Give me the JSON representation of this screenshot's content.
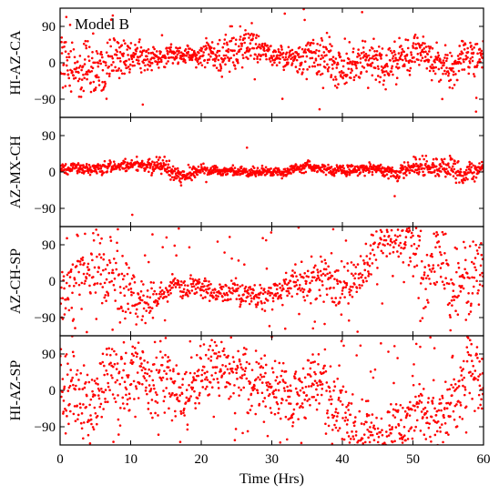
{
  "chart_data": {
    "type": "scatter",
    "title": "",
    "annotation": "Model B",
    "xlabel": "Time (Hrs)",
    "xlim": [
      0,
      60
    ],
    "x_ticks": [
      0,
      10,
      20,
      30,
      40,
      50,
      60
    ],
    "ylim": [
      -135,
      135
    ],
    "y_ticks": [
      -90,
      0,
      90
    ],
    "y_tick_labels": [
      "−90",
      "0",
      "90"
    ],
    "grid": false,
    "marker_color": "#ff0000",
    "series": [
      {
        "name": "HI-AZ-CA",
        "points_per_hour": 20,
        "baseline": [
          [
            0,
            -5
          ],
          [
            3,
            -15
          ],
          [
            6,
            0
          ],
          [
            10,
            10
          ],
          [
            14,
            10
          ],
          [
            20,
            20
          ],
          [
            25,
            25
          ],
          [
            27,
            40
          ],
          [
            30,
            20
          ],
          [
            33,
            10
          ],
          [
            36,
            20
          ],
          [
            40,
            -5
          ],
          [
            44,
            5
          ],
          [
            48,
            10
          ],
          [
            52,
            15
          ],
          [
            55,
            -20
          ],
          [
            58,
            20
          ],
          [
            60,
            25
          ]
        ],
        "scatter_sd": [
          [
            0,
            45
          ],
          [
            8,
            40
          ],
          [
            12,
            20
          ],
          [
            20,
            15
          ],
          [
            24,
            45
          ],
          [
            28,
            25
          ],
          [
            32,
            15
          ],
          [
            36,
            35
          ],
          [
            42,
            40
          ],
          [
            50,
            30
          ],
          [
            55,
            30
          ],
          [
            60,
            35
          ]
        ],
        "outlier_fraction": 0.05
      },
      {
        "name": "AZ-MX-CH",
        "points_per_hour": 20,
        "baseline": [
          [
            0,
            5
          ],
          [
            5,
            10
          ],
          [
            10,
            15
          ],
          [
            15,
            10
          ],
          [
            17,
            -10
          ],
          [
            20,
            5
          ],
          [
            25,
            0
          ],
          [
            30,
            0
          ],
          [
            35,
            10
          ],
          [
            40,
            5
          ],
          [
            45,
            10
          ],
          [
            48,
            -5
          ],
          [
            50,
            20
          ],
          [
            55,
            10
          ],
          [
            58,
            -5
          ],
          [
            60,
            10
          ]
        ],
        "scatter_sd": [
          [
            0,
            10
          ],
          [
            10,
            10
          ],
          [
            16,
            15
          ],
          [
            20,
            8
          ],
          [
            30,
            8
          ],
          [
            45,
            10
          ],
          [
            50,
            15
          ],
          [
            57,
            20
          ],
          [
            60,
            15
          ]
        ],
        "outlier_fraction": 0.005
      },
      {
        "name": "AZ-CH-SP",
        "points_per_hour": 16,
        "baseline": [
          [
            0,
            -30
          ],
          [
            5,
            60
          ],
          [
            8,
            -20
          ],
          [
            12,
            -60
          ],
          [
            14,
            -40
          ],
          [
            16,
            -10
          ],
          [
            20,
            -20
          ],
          [
            25,
            -30
          ],
          [
            30,
            -30
          ],
          [
            33,
            -10
          ],
          [
            36,
            -5
          ],
          [
            40,
            -10
          ],
          [
            43,
            30
          ],
          [
            45,
            100
          ],
          [
            48,
            115
          ],
          [
            50,
            70
          ],
          [
            53,
            50
          ],
          [
            56,
            -15
          ],
          [
            60,
            30
          ]
        ],
        "scatter_sd": [
          [
            0,
            50
          ],
          [
            8,
            60
          ],
          [
            12,
            30
          ],
          [
            15,
            20
          ],
          [
            25,
            18
          ],
          [
            30,
            20
          ],
          [
            35,
            30
          ],
          [
            40,
            35
          ],
          [
            45,
            40
          ],
          [
            50,
            60
          ],
          [
            55,
            60
          ],
          [
            60,
            50
          ]
        ],
        "outlier_fraction": 0.1
      },
      {
        "name": "HI-AZ-SP",
        "points_per_hour": 18,
        "baseline": [
          [
            0,
            40
          ],
          [
            3,
            -60
          ],
          [
            7,
            60
          ],
          [
            10,
            40
          ],
          [
            14,
            30
          ],
          [
            18,
            -10
          ],
          [
            22,
            70
          ],
          [
            26,
            20
          ],
          [
            30,
            10
          ],
          [
            33,
            -30
          ],
          [
            36,
            50
          ],
          [
            39,
            -40
          ],
          [
            42,
            -90
          ],
          [
            46,
            -110
          ],
          [
            50,
            -60
          ],
          [
            54,
            -70
          ],
          [
            58,
            40
          ],
          [
            60,
            40
          ]
        ],
        "scatter_sd": [
          [
            0,
            60
          ],
          [
            6,
            65
          ],
          [
            12,
            55
          ],
          [
            20,
            45
          ],
          [
            28,
            45
          ],
          [
            34,
            55
          ],
          [
            40,
            55
          ],
          [
            46,
            45
          ],
          [
            52,
            60
          ],
          [
            60,
            60
          ]
        ],
        "outlier_fraction": 0.12
      }
    ]
  }
}
